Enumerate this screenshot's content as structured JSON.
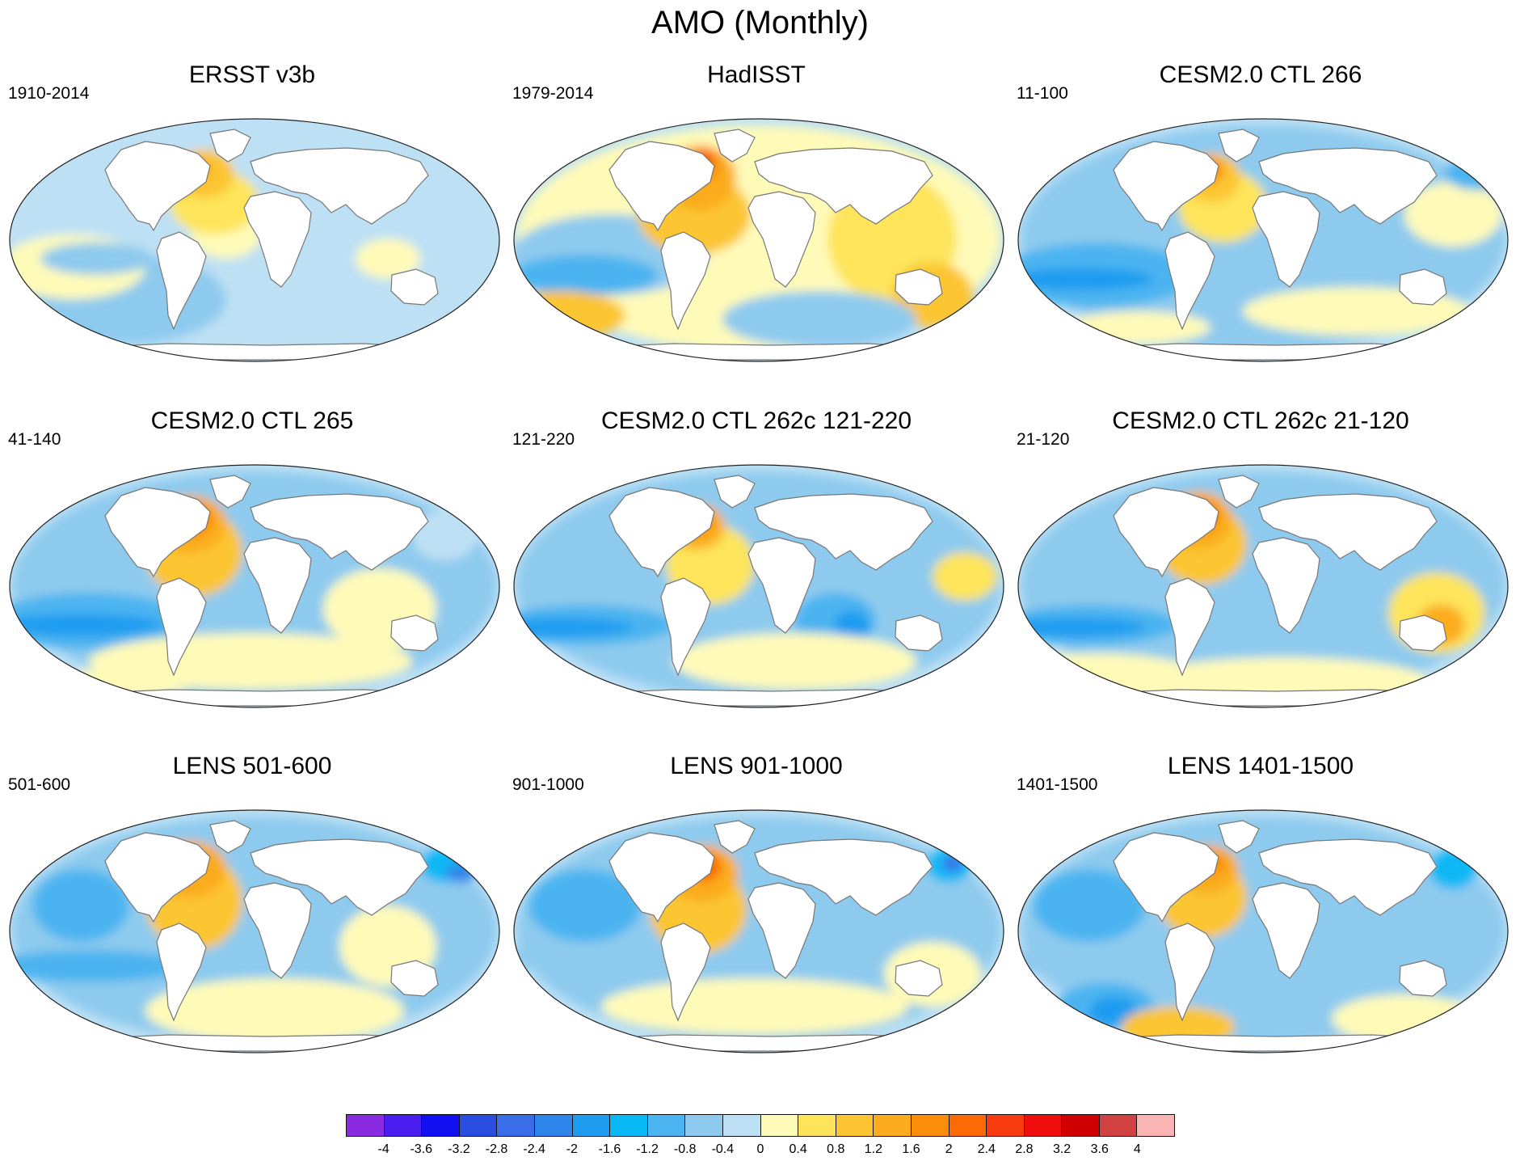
{
  "title": "AMO (Monthly)",
  "panels": [
    {
      "title": "ERSST v3b",
      "years": "1910-2014",
      "pattern": "obs_ersst"
    },
    {
      "title": "HadISST",
      "years": "1979-2014",
      "pattern": "obs_hadisst"
    },
    {
      "title": "CESM2.0 CTL 266",
      "years": "11-100",
      "pattern": "model_a"
    },
    {
      "title": "CESM2.0 CTL 265",
      "years": "41-140",
      "pattern": "model_b"
    },
    {
      "title": "CESM2.0 CTL 262c 121-220",
      "years": "121-220",
      "pattern": "model_c"
    },
    {
      "title": "CESM2.0 CTL 262c 21-120",
      "years": "21-120",
      "pattern": "model_d"
    },
    {
      "title": "LENS 501-600",
      "years": "501-600",
      "pattern": "lens_a"
    },
    {
      "title": "LENS 901-1000",
      "years": "901-1000",
      "pattern": "lens_b"
    },
    {
      "title": "LENS 1401-1500",
      "years": "1401-1500",
      "pattern": "lens_c"
    }
  ],
  "colorbar": {
    "colors": [
      "#8a2be2",
      "#4a1df0",
      "#1010f0",
      "#2a4ee0",
      "#3a6ee8",
      "#2f86ea",
      "#1e9cf0",
      "#08b8f5",
      "#4cb4f0",
      "#8ecaee",
      "#bde0f4",
      "#fefab8",
      "#fde45a",
      "#fcc531",
      "#fbac1e",
      "#fb8d0b",
      "#fb6a05",
      "#f83a0f",
      "#f00d0d",
      "#d00000",
      "#d14141",
      "#fbb4b4"
    ],
    "labels": [
      "-4",
      "-3.6",
      "-3.2",
      "-2.8",
      "-2.4",
      "-2",
      "-1.6",
      "-1.2",
      "-0.8",
      "-0.4",
      "0",
      "0.4",
      "0.8",
      "1.2",
      "1.6",
      "2",
      "2.4",
      "2.8",
      "3.2",
      "3.6",
      "4"
    ]
  }
}
